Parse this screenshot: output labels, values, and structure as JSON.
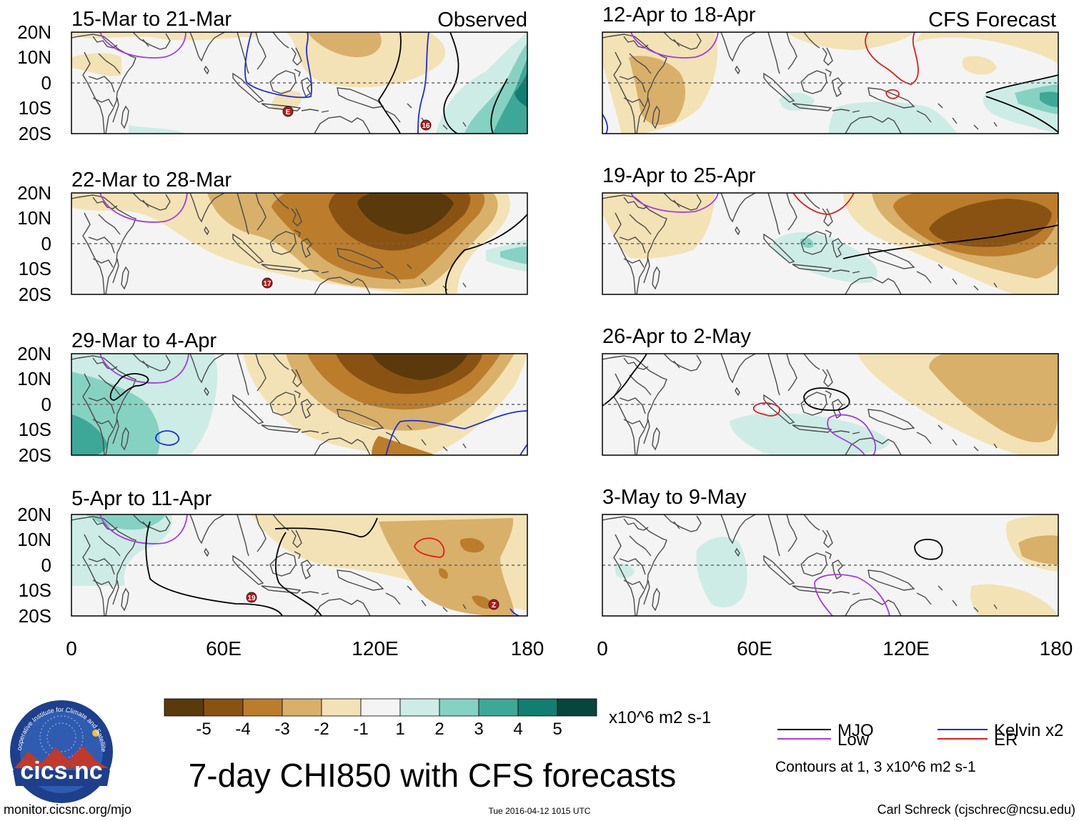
{
  "figure": {
    "title": "7-day CHI850 with CFS forecasts",
    "units": "x10^6 m2 s-1",
    "footer_left": "monitor.cicsnc.org/mjo",
    "footer_center": "Tue 2016-04-12 1015 UTC",
    "footer_right": "Carl Schreck (cjschrec@ncsu.edu)",
    "logo_text": "cics.nc",
    "logo_ring": "Cooperative Institute for Climate and Satellites"
  },
  "column_labels": {
    "left": "Observed",
    "right": "CFS Forecast"
  },
  "axes": {
    "lat_ticks": [
      "20N",
      "10N",
      "0",
      "10S",
      "20S"
    ],
    "lon_ticks": [
      "0",
      "60E",
      "120E",
      "180"
    ]
  },
  "panels": {
    "left": [
      {
        "title": "15-Mar to 21-Mar"
      },
      {
        "title": "22-Mar to 28-Mar"
      },
      {
        "title": "29-Mar to 4-Apr"
      },
      {
        "title": "5-Apr to 11-Apr"
      }
    ],
    "right": [
      {
        "title": "12-Apr to 18-Apr"
      },
      {
        "title": "19-Apr to 25-Apr"
      },
      {
        "title": "26-Apr to 2-May"
      },
      {
        "title": "3-May to 9-May"
      }
    ]
  },
  "colorbar": {
    "colors": [
      "#5a3a0c",
      "#8a5212",
      "#bb7d2c",
      "#d8b06a",
      "#f3e2b5",
      "#f4f4f4",
      "#cdece5",
      "#86d2c2",
      "#3ea898",
      "#107f72",
      "#07453d"
    ],
    "ticks": [
      "-5",
      "-4",
      "-3",
      "-2",
      "-1",
      "1",
      "2",
      "3",
      "4",
      "5"
    ]
  },
  "legend": {
    "items": [
      {
        "label": "MJO",
        "color": "#000000"
      },
      {
        "label": "Kelvin x2",
        "color": "#1f2bdc"
      },
      {
        "label": "Low",
        "color": "#a33de0"
      },
      {
        "label": "ER",
        "color": "#e01d1d"
      }
    ],
    "contour_note": "Contours at 1, 3 x10^6 m2 s-1"
  },
  "storm_markers": [
    {
      "panel": "obs-1",
      "label": "E"
    },
    {
      "panel": "obs-1",
      "label": "16"
    },
    {
      "panel": "obs-2",
      "label": "17"
    },
    {
      "panel": "obs-4",
      "label": "19"
    },
    {
      "panel": "obs-4",
      "label": "Z"
    }
  ]
}
